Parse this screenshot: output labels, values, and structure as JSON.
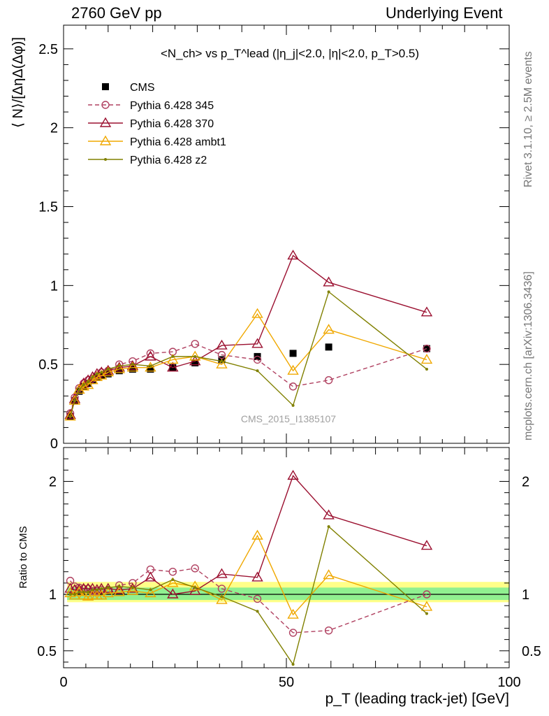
{
  "header": {
    "left": "2760 GeV pp",
    "right": "Underlying Event"
  },
  "side_labels": {
    "rivet": "Rivet 3.1.10, ≥ 2.5M events",
    "mcplots": "mcplots.cern.ch [arXiv:1306.3436]"
  },
  "watermark": "CMS_2015_I1385107",
  "chart_data": [
    {
      "type": "scatter",
      "title": "<N_ch> vs p_T^lead (|η_j|<2.0, |η|<2.0, p_T>0.5)",
      "ylabel": "⟨ N⟩/[ΔηΔ(Δφ)]",
      "xlabel": "",
      "xlim": [
        0,
        100
      ],
      "ylim": [
        0,
        2.65
      ],
      "yticks": [
        "0",
        "0.5",
        "1",
        "1.5",
        "2",
        "2.5"
      ],
      "legend_position": "top-left",
      "x": [
        1.5,
        2.5,
        3.5,
        4.5,
        5.5,
        6.5,
        7.5,
        8.5,
        10,
        12.5,
        15.5,
        19.5,
        24.5,
        29.5,
        35.5,
        43.5,
        51.5,
        59.5,
        81.5
      ],
      "series": [
        {
          "name": "CMS",
          "color": "#000000",
          "marker": "square",
          "values": [
            0.17,
            0.27,
            0.33,
            0.36,
            0.38,
            0.4,
            0.42,
            0.43,
            0.44,
            0.46,
            0.47,
            0.47,
            0.48,
            0.51,
            0.53,
            0.55,
            0.57,
            0.61,
            0.6
          ]
        },
        {
          "name": "Pythia 6.428 345",
          "color": "#b04060",
          "marker": "circle-open",
          "dash": "6,4",
          "values": [
            0.19,
            0.29,
            0.35,
            0.38,
            0.4,
            0.41,
            0.43,
            0.45,
            0.46,
            0.5,
            0.52,
            0.57,
            0.58,
            0.63,
            0.56,
            0.53,
            0.36,
            0.4,
            0.6
          ]
        },
        {
          "name": "Pythia 6.428 370",
          "color": "#9b1030",
          "marker": "triangle-open",
          "values": [
            0.18,
            0.28,
            0.34,
            0.38,
            0.4,
            0.42,
            0.44,
            0.45,
            0.46,
            0.48,
            0.49,
            0.55,
            0.48,
            0.52,
            0.62,
            0.63,
            1.19,
            1.02,
            0.83
          ]
        },
        {
          "name": "Pythia 6.428 ambt1",
          "color": "#f0a800",
          "marker": "triangle-open",
          "values": [
            0.17,
            0.27,
            0.34,
            0.36,
            0.37,
            0.4,
            0.42,
            0.43,
            0.45,
            0.47,
            0.48,
            0.48,
            0.53,
            0.55,
            0.5,
            0.82,
            0.46,
            0.72,
            0.53
          ]
        },
        {
          "name": "Pythia 6.428 z2",
          "color": "#808000",
          "marker": "dot",
          "values": [
            0.17,
            0.27,
            0.34,
            0.37,
            0.39,
            0.42,
            0.44,
            0.45,
            0.47,
            0.49,
            0.5,
            0.49,
            0.55,
            0.55,
            0.52,
            0.46,
            0.24,
            0.96,
            0.47
          ]
        }
      ]
    },
    {
      "type": "scatter",
      "ylabel": "Ratio to CMS",
      "xlabel": "p_T (leading track-jet) [GeV]",
      "xlim": [
        0,
        100
      ],
      "ylim": [
        0.35,
        2.3
      ],
      "yticks": [
        "0.5",
        "1",
        "2"
      ],
      "xticks": [
        "0",
        "50",
        "100"
      ],
      "x": [
        1.5,
        2.5,
        3.5,
        4.5,
        5.5,
        6.5,
        7.5,
        8.5,
        10,
        12.5,
        15.5,
        19.5,
        24.5,
        29.5,
        35.5,
        43.5,
        51.5,
        59.5,
        81.5
      ],
      "series": [
        {
          "name": "Pythia 6.428 345",
          "color": "#b04060",
          "values": [
            1.12,
            1.07,
            1.06,
            1.05,
            1.05,
            1.03,
            1.03,
            1.04,
            1.04,
            1.08,
            1.1,
            1.22,
            1.2,
            1.23,
            1.05,
            0.96,
            0.66,
            0.68,
            1.0
          ]
        },
        {
          "name": "Pythia 6.428 370",
          "color": "#9b1030",
          "values": [
            1.05,
            1.04,
            1.04,
            1.05,
            1.05,
            1.05,
            1.04,
            1.05,
            1.05,
            1.04,
            1.05,
            1.15,
            1.0,
            1.03,
            1.18,
            1.15,
            2.05,
            1.7,
            1.43
          ]
        },
        {
          "name": "Pythia 6.428 ambt1",
          "color": "#f0a800",
          "values": [
            1.01,
            0.99,
            1.02,
            0.99,
            0.98,
            0.99,
            0.99,
            0.99,
            1.01,
            1.02,
            1.03,
            1.01,
            1.1,
            1.07,
            0.95,
            1.52,
            0.82,
            1.17,
            0.89
          ]
        },
        {
          "name": "Pythia 6.428 z2",
          "color": "#808000",
          "values": [
            1.0,
            1.0,
            1.02,
            1.02,
            1.02,
            1.04,
            1.04,
            1.05,
            1.06,
            1.07,
            1.06,
            1.04,
            1.13,
            1.06,
            0.98,
            0.85,
            0.38,
            1.6,
            0.83
          ]
        }
      ]
    }
  ]
}
